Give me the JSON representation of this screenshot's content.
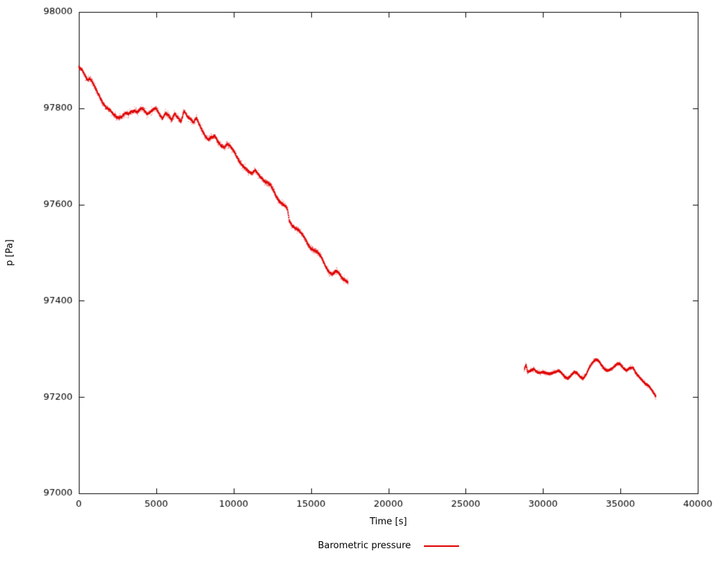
{
  "chart_data": {
    "type": "scatter",
    "title": "",
    "xlabel": "Time [s]",
    "ylabel": "p [Pa]",
    "xlim": [
      0,
      40000
    ],
    "ylim": [
      97000,
      98000
    ],
    "x_ticks": [
      0,
      5000,
      10000,
      15000,
      20000,
      25000,
      30000,
      35000,
      40000
    ],
    "y_ticks": [
      97000,
      97200,
      97400,
      97600,
      97800,
      98000
    ],
    "grid": false,
    "legend_position": "bottom-center",
    "axis_color": "#000000",
    "series": [
      {
        "name": "Barometric pressure",
        "color": "#e00000",
        "style": "dots",
        "segments": [
          {
            "noise_pa": 4.5,
            "points": [
              [
                0,
                97886
              ],
              [
                200,
                97880
              ],
              [
                400,
                97868
              ],
              [
                550,
                97858
              ],
              [
                700,
                97862
              ],
              [
                850,
                97856
              ],
              [
                1000,
                97846
              ],
              [
                1200,
                97833
              ],
              [
                1400,
                97820
              ],
              [
                1600,
                97808
              ],
              [
                1800,
                97800
              ],
              [
                2000,
                97797
              ],
              [
                2200,
                97788
              ],
              [
                2400,
                97783
              ],
              [
                2600,
                97780
              ],
              [
                2800,
                97783
              ],
              [
                3000,
                97790
              ],
              [
                3200,
                97788
              ],
              [
                3400,
                97793
              ],
              [
                3600,
                97795
              ],
              [
                3800,
                97792
              ],
              [
                4000,
                97800
              ],
              [
                4200,
                97797
              ],
              [
                4400,
                97788
              ],
              [
                4600,
                97792
              ],
              [
                4800,
                97797
              ],
              [
                5000,
                97800
              ],
              [
                5200,
                97788
              ],
              [
                5400,
                97778
              ],
              [
                5600,
                97790
              ],
              [
                5800,
                97785
              ],
              [
                6000,
                97775
              ],
              [
                6200,
                97790
              ],
              [
                6400,
                97780
              ],
              [
                6600,
                97772
              ],
              [
                6800,
                97795
              ],
              [
                7000,
                97783
              ],
              [
                7200,
                97778
              ],
              [
                7400,
                97770
              ],
              [
                7600,
                97780
              ],
              [
                7800,
                97765
              ],
              [
                8000,
                97752
              ],
              [
                8200,
                97740
              ],
              [
                8400,
                97735
              ],
              [
                8600,
                97740
              ],
              [
                8800,
                97742
              ],
              [
                9000,
                97730
              ],
              [
                9200,
                97722
              ],
              [
                9400,
                97718
              ],
              [
                9600,
                97726
              ],
              [
                9800,
                97720
              ],
              [
                10000,
                97712
              ],
              [
                10200,
                97700
              ],
              [
                10400,
                97688
              ],
              [
                10600,
                97680
              ],
              [
                10800,
                97674
              ],
              [
                11000,
                97668
              ],
              [
                11200,
                97665
              ],
              [
                11400,
                97672
              ],
              [
                11600,
                97662
              ],
              [
                11800,
                97655
              ],
              [
                12000,
                97648
              ],
              [
                12200,
                97645
              ],
              [
                12400,
                97640
              ],
              [
                12600,
                97628
              ],
              [
                12800,
                97614
              ],
              [
                13000,
                97605
              ],
              [
                13200,
                97600
              ],
              [
                13400,
                97595
              ],
              [
                13500,
                97588
              ],
              [
                13600,
                97566
              ],
              [
                13800,
                97555
              ],
              [
                14000,
                97550
              ],
              [
                14200,
                97548
              ],
              [
                14400,
                97540
              ],
              [
                14600,
                97530
              ],
              [
                14800,
                97518
              ],
              [
                15000,
                97508
              ],
              [
                15200,
                97505
              ],
              [
                15400,
                97502
              ],
              [
                15600,
                97495
              ],
              [
                15800,
                97482
              ],
              [
                16000,
                97468
              ],
              [
                16200,
                97458
              ],
              [
                16400,
                97455
              ],
              [
                16600,
                97462
              ],
              [
                16800,
                97458
              ],
              [
                17000,
                97448
              ],
              [
                17200,
                97442
              ],
              [
                17400,
                97438
              ]
            ]
          },
          {
            "noise_pa": 3.0,
            "points": [
              [
                28800,
                97258
              ],
              [
                28900,
                97268
              ],
              [
                29000,
                97252
              ],
              [
                29200,
                97255
              ],
              [
                29400,
                97258
              ],
              [
                29600,
                97252
              ],
              [
                29800,
                97250
              ],
              [
                30000,
                97252
              ],
              [
                30200,
                97250
              ],
              [
                30400,
                97248
              ],
              [
                30600,
                97250
              ],
              [
                30800,
                97252
              ],
              [
                31000,
                97255
              ],
              [
                31200,
                97250
              ],
              [
                31400,
                97242
              ],
              [
                31600,
                97238
              ],
              [
                31800,
                97245
              ],
              [
                32000,
                97252
              ],
              [
                32200,
                97250
              ],
              [
                32400,
                97242
              ],
              [
                32600,
                97238
              ],
              [
                32800,
                97248
              ],
              [
                33000,
                97262
              ],
              [
                33200,
                97272
              ],
              [
                33400,
                97278
              ],
              [
                33600,
                97275
              ],
              [
                33800,
                97265
              ],
              [
                34000,
                97257
              ],
              [
                34200,
                97255
              ],
              [
                34400,
                97258
              ],
              [
                34600,
                97263
              ],
              [
                34800,
                97270
              ],
              [
                35000,
                97268
              ],
              [
                35200,
                97260
              ],
              [
                35400,
                97255
              ],
              [
                35600,
                97260
              ],
              [
                35800,
                97262
              ],
              [
                36000,
                97250
              ],
              [
                36200,
                97242
              ],
              [
                36400,
                97235
              ],
              [
                36600,
                97228
              ],
              [
                36800,
                97224
              ],
              [
                37000,
                97216
              ],
              [
                37200,
                97206
              ],
              [
                37300,
                97200
              ]
            ]
          }
        ]
      }
    ]
  },
  "legend": {
    "label": "Barometric pressure"
  },
  "axes": {
    "xlabel": "Time [s]",
    "ylabel": "p [Pa]"
  }
}
